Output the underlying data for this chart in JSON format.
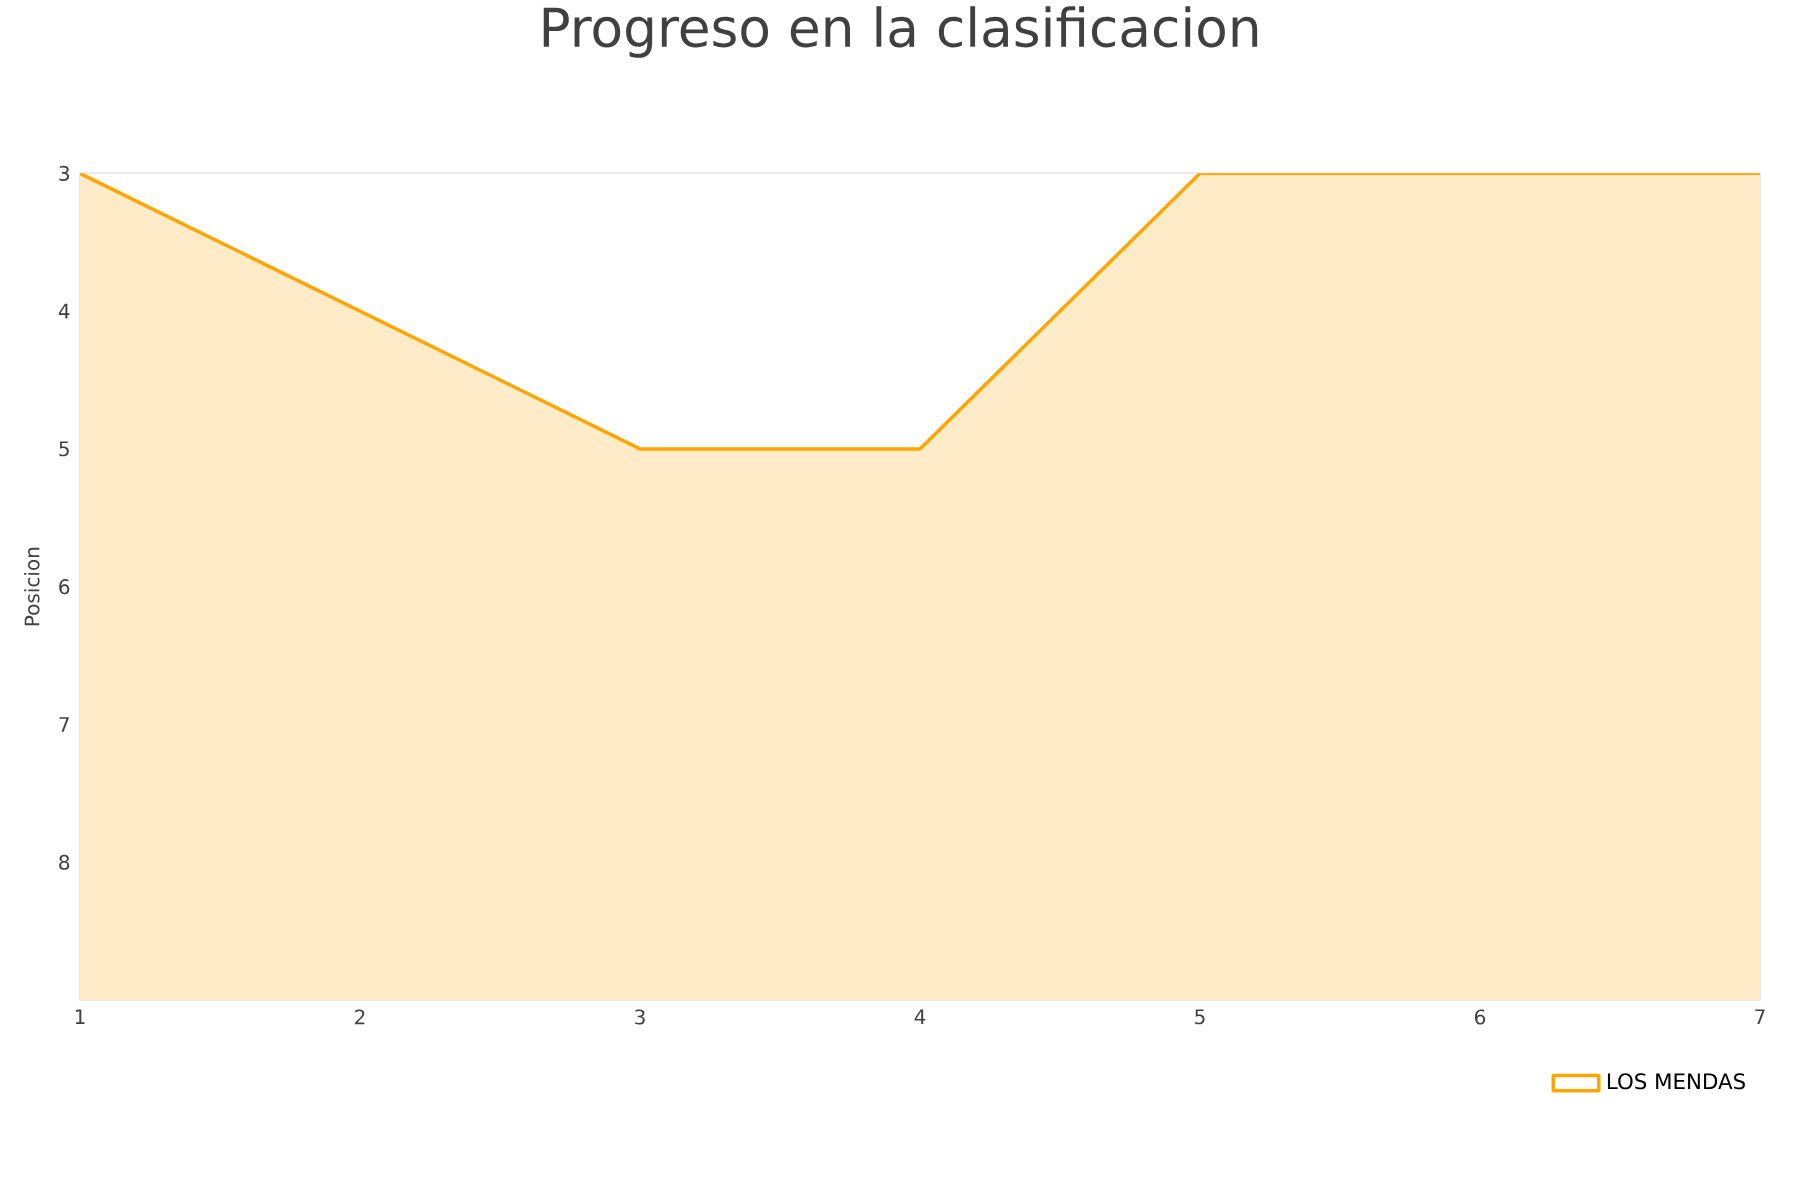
{
  "chart_data": {
    "type": "area",
    "title": "Progreso en la clasificacion",
    "ylabel": "Posicion",
    "x": [
      1,
      2,
      3,
      4,
      5,
      6,
      7
    ],
    "series": [
      {
        "name": "LOS MENDAS",
        "color": "#ffa500",
        "values": [
          3,
          4,
          5,
          5,
          3,
          3,
          3
        ]
      }
    ],
    "xlim": [
      1,
      7
    ],
    "xticks": [
      1,
      2,
      3,
      4,
      5,
      6,
      7
    ],
    "ylim": [
      9,
      3
    ],
    "yticks": [
      3,
      4,
      5,
      6,
      7,
      8
    ],
    "grid": "y",
    "legend": "bottom right",
    "marker": "none"
  }
}
